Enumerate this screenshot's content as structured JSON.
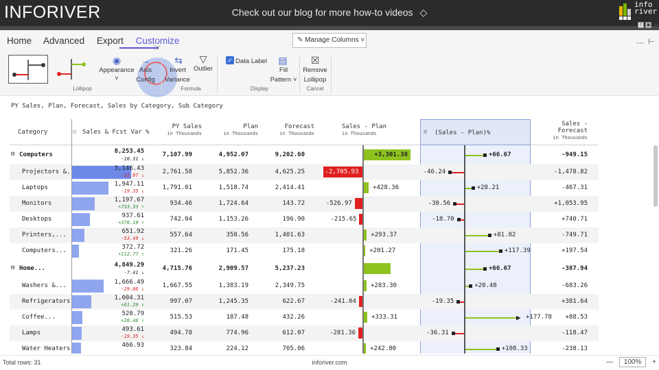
{
  "header": {
    "brand": "INFORIVER",
    "blog_text": "Check out our blog for more how-to videos",
    "logo_text_1": "info",
    "logo_text_2": "river"
  },
  "toolbar": {
    "menu": [
      "Home",
      "Advanced",
      "Export",
      "Customize"
    ],
    "active_menu": "Customize",
    "manage_columns": "Manage Columns",
    "groups": {
      "lollipop": "Lollipop",
      "formula": "Formula",
      "display": "Display",
      "cancel": "Cancel"
    },
    "buttons": {
      "appearance": "Appearance",
      "axis_config_1": "Axis",
      "axis_config_2": "Config",
      "invert_variance_1": "Invert",
      "invert_variance_2": "Variance",
      "outlier": "Outlier",
      "data_label": "Data Label",
      "fill_pattern_1": "Fill",
      "fill_pattern_2": "Pattern",
      "remove_lollipop_1": "Remove",
      "remove_lollipop_2": "Lollipop"
    },
    "accent": "#5b57d6"
  },
  "subtitle": "PY Sales, Plan, Forecast, Sales by Category, Sub Category",
  "columns": {
    "category": "Category",
    "sales_fcst_var": "Sales & Fcst Var %",
    "py_sales": "PY Sales",
    "plan": "Plan",
    "forecast": "Forecast",
    "sales_minus_plan": "Sales - Plan",
    "sales_plan_pct": "(Sales - Plan)%",
    "sales_minus_forecast_1": "Sales -",
    "sales_minus_forecast_2": "Forecast",
    "in_thousands": "in Thousands"
  },
  "rows": [
    {
      "category": "Computers",
      "group": true,
      "sales": "8,253.45",
      "var": "-10.31",
      "dir": "down",
      "bar": 0,
      "py": "7,107.99",
      "plan": "4,952.07",
      "forecast": "9,202.60",
      "diff": "+3,301.38",
      "diff_val": 3301.38,
      "pct": "+66.67",
      "pct_val": 66.67,
      "sf": "-949.15"
    },
    {
      "category": "Projectors &...",
      "group": false,
      "sales": "3,146.43",
      "var": "-31.97",
      "dir": "down",
      "bar": 1.0,
      "py": "2,761.58",
      "plan": "5,852.36",
      "forecast": "4,625.25",
      "diff": "-2,705.93",
      "diff_val": -2705.93,
      "pct": "-46.24",
      "pct_val": -46.24,
      "sf": "-1,478.82"
    },
    {
      "category": "Laptops",
      "group": false,
      "sales": "1,947.11",
      "var": "-19.35",
      "dir": "down",
      "bar": 0.62,
      "py": "1,791.01",
      "plan": "1,518.74",
      "forecast": "2,414.41",
      "diff": "+428.36",
      "diff_val": 428.36,
      "pct": "+28.21",
      "pct_val": 28.21,
      "sf": "-467.31"
    },
    {
      "category": "Monitors",
      "group": false,
      "sales": "1,197.67",
      "var": "+733.33",
      "dir": "up",
      "bar": 0.38,
      "py": "934.46",
      "plan": "1,724.64",
      "forecast": "143.72",
      "diff": "-526.97",
      "diff_val": -526.97,
      "pct": "-30.56",
      "pct_val": -30.56,
      "sf": "+1,053.95"
    },
    {
      "category": "Desktops",
      "group": false,
      "sales": "937.61",
      "var": "+376.19",
      "dir": "up",
      "bar": 0.3,
      "py": "742.04",
      "plan": "1,153.26",
      "forecast": "196.90",
      "diff": "-215.65",
      "diff_val": -215.65,
      "pct": "-18.70",
      "pct_val": -18.7,
      "sf": "+740.71"
    },
    {
      "category": "Printers,...",
      "group": false,
      "sales": "651.92",
      "var": "-53.49",
      "dir": "down",
      "bar": 0.21,
      "py": "557.64",
      "plan": "358.56",
      "forecast": "1,401.63",
      "diff": "+293.37",
      "diff_val": 293.37,
      "pct": "+81.82",
      "pct_val": 81.82,
      "sf": "-749.71"
    },
    {
      "category": "Computers...",
      "group": false,
      "sales": "372.72",
      "var": "+112.77",
      "dir": "up",
      "bar": 0.12,
      "py": "321.26",
      "plan": "171.45",
      "forecast": "175.18",
      "diff": "+201.27",
      "diff_val": 201.27,
      "pct": "+117.39",
      "pct_val": 117.39,
      "sf": "+197.54"
    },
    {
      "category": "Home...",
      "group": true,
      "sales": "4,849.29",
      "var": "-7.41",
      "dir": "down",
      "bar": 0,
      "py": "4,715.76",
      "plan": "2,909.57",
      "forecast": "5,237.23",
      "diff": "",
      "diff_val": 1939.72,
      "pct": "+66.67",
      "pct_val": 66.67,
      "sf": "-387.94"
    },
    {
      "category": "Washers &...",
      "group": false,
      "sales": "1,666.49",
      "var": "-29.08",
      "dir": "down",
      "bar": 0.53,
      "py": "1,667.55",
      "plan": "1,383.19",
      "forecast": "2,349.75",
      "diff": "+283.30",
      "diff_val": 283.3,
      "pct": "+20.48",
      "pct_val": 20.48,
      "sf": "-683.26"
    },
    {
      "category": "Refrigerators",
      "group": false,
      "sales": "1,004.31",
      "var": "+61.29",
      "dir": "up",
      "bar": 0.32,
      "py": "997.07",
      "plan": "1,245.35",
      "forecast": "622.67",
      "diff": "-241.04",
      "diff_val": -241.04,
      "pct": "-19.35",
      "pct_val": -19.35,
      "sf": "+381.64"
    },
    {
      "category": "Coffee...",
      "group": false,
      "sales": "520.79",
      "var": "+20.48",
      "dir": "up",
      "bar": 0.17,
      "py": "515.53",
      "plan": "187.48",
      "forecast": "432.26",
      "diff": "+333.31",
      "diff_val": 333.31,
      "pct": "+177.78",
      "pct_val": 177.78,
      "sf": "+88.53"
    },
    {
      "category": "Lamps",
      "group": false,
      "sales": "493.61",
      "var": "-19.35",
      "dir": "down",
      "bar": 0.16,
      "py": "494.78",
      "plan": "774.96",
      "forecast": "612.07",
      "diff": "-281.36",
      "diff_val": -281.36,
      "pct": "-36.31",
      "pct_val": -36.31,
      "sf": "-118.47"
    },
    {
      "category": "Water Heaters",
      "group": false,
      "sales": "466.93",
      "var": "",
      "dir": "down",
      "bar": 0.15,
      "py": "323.84",
      "plan": "224.12",
      "forecast": "705.06",
      "diff": "+242.80",
      "diff_val": 242.8,
      "pct": "+108.33",
      "pct_val": 108.33,
      "sf": "-238.13"
    }
  ],
  "footer": {
    "total_rows": "Total rows: 31",
    "site": "inforiver.com",
    "zoom": "100%"
  },
  "colors": {
    "positive": "#8ec21f",
    "negative": "#e02020",
    "bar": "#8fa6ef"
  }
}
